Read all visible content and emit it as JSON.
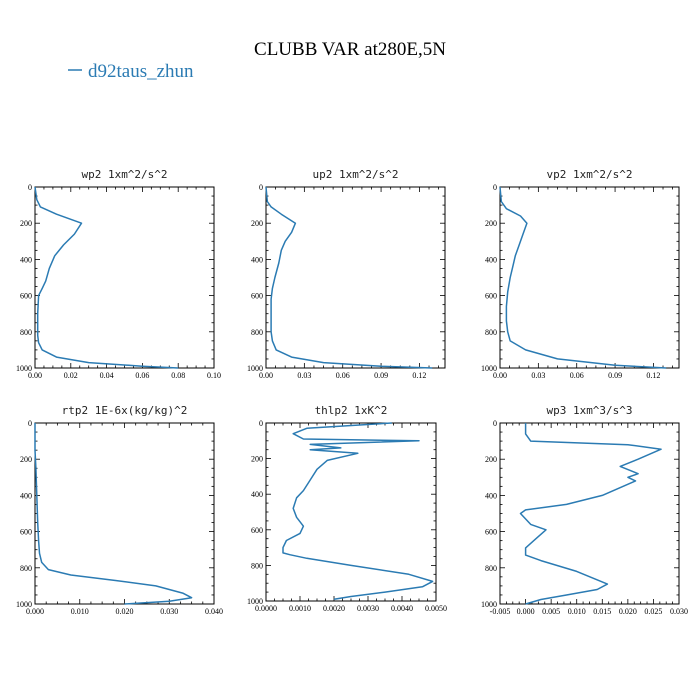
{
  "figure": {
    "title": "CLUBB VAR at280E,5N",
    "legend": {
      "label": "d92taus_zhun",
      "color": "#2b7bb3"
    }
  },
  "chart_data": [
    {
      "type": "line",
      "title": "wp2  1xm^2/s^2",
      "xlim": [
        0,
        0.1
      ],
      "xticks": [
        0,
        0.02,
        0.04,
        0.06,
        0.08,
        0.1
      ],
      "xtick_labels": [
        "0.00",
        "0.02",
        "0.04",
        "0.06",
        "0.08",
        "0.10"
      ],
      "ylim": [
        1000,
        0
      ],
      "yticks": [
        0,
        200,
        400,
        600,
        800,
        1000
      ],
      "ytick_labels": [
        "0",
        "200",
        "400",
        "600",
        "800",
        "1000"
      ],
      "series": [
        {
          "color": "#2b7bb3",
          "x": [
            0.0,
            0.001,
            0.003,
            0.012,
            0.026,
            0.022,
            0.016,
            0.011,
            0.008,
            0.006,
            0.004,
            0.002,
            0.0015,
            0.0015,
            0.0015,
            0.002,
            0.004,
            0.012,
            0.03,
            0.06,
            0.08
          ],
          "y": [
            0,
            70,
            110,
            150,
            200,
            260,
            320,
            380,
            450,
            520,
            560,
            600,
            700,
            780,
            820,
            860,
            900,
            940,
            970,
            990,
            1000
          ]
        }
      ]
    },
    {
      "type": "line",
      "title": "up2  1xm^2/s^2",
      "xlim": [
        0,
        0.14
      ],
      "xticks": [
        0,
        0.03,
        0.06,
        0.09,
        0.12
      ],
      "xtick_labels": [
        "0.00",
        "0.03",
        "0.06",
        "0.09",
        "0.12"
      ],
      "ylim": [
        1000,
        0
      ],
      "yticks": [
        0,
        200,
        400,
        600,
        800,
        1000
      ],
      "ytick_labels": [
        "0",
        "200",
        "400",
        "600",
        "800",
        "1000"
      ],
      "series": [
        {
          "color": "#2b7bb3",
          "x": [
            0.0,
            0.001,
            0.004,
            0.012,
            0.023,
            0.02,
            0.015,
            0.012,
            0.01,
            0.007,
            0.005,
            0.004,
            0.004,
            0.004,
            0.005,
            0.008,
            0.02,
            0.045,
            0.09,
            0.13
          ],
          "y": [
            0,
            80,
            110,
            150,
            200,
            250,
            300,
            350,
            420,
            500,
            560,
            620,
            700,
            800,
            850,
            900,
            940,
            970,
            990,
            1000
          ]
        }
      ]
    },
    {
      "type": "line",
      "title": "vp2  1xm^2/s^2",
      "xlim": [
        0,
        0.14
      ],
      "xticks": [
        0,
        0.03,
        0.06,
        0.09,
        0.12
      ],
      "xtick_labels": [
        "0.00",
        "0.03",
        "0.06",
        "0.09",
        "0.12"
      ],
      "ylim": [
        1000,
        0
      ],
      "yticks": [
        0,
        200,
        400,
        600,
        800,
        1000
      ],
      "ytick_labels": [
        "0",
        "200",
        "400",
        "600",
        "800",
        "1000"
      ],
      "series": [
        {
          "color": "#2b7bb3",
          "x": [
            0.0,
            0.001,
            0.005,
            0.016,
            0.021,
            0.018,
            0.015,
            0.012,
            0.01,
            0.008,
            0.006,
            0.005,
            0.005,
            0.006,
            0.008,
            0.02,
            0.045,
            0.09,
            0.13
          ],
          "y": [
            0,
            80,
            120,
            160,
            200,
            260,
            320,
            380,
            440,
            500,
            580,
            660,
            740,
            800,
            850,
            900,
            950,
            985,
            1000
          ]
        }
      ]
    },
    {
      "type": "line",
      "title": "rtp2  1E-6x(kg/kg)^2",
      "xlim": [
        0,
        0.04
      ],
      "xticks": [
        0,
        0.01,
        0.02,
        0.03,
        0.04
      ],
      "xtick_labels": [
        "0.000",
        "0.010",
        "0.020",
        "0.030",
        "0.040"
      ],
      "ylim": [
        1000,
        0
      ],
      "yticks": [
        0,
        200,
        400,
        600,
        800,
        1000
      ],
      "ytick_labels": [
        "0",
        "200",
        "400",
        "600",
        "800",
        "1000"
      ],
      "series": [
        {
          "color": "#2b7bb3",
          "x": [
            0.0,
            0.0,
            0.0002,
            0.0004,
            0.0006,
            0.0008,
            0.001,
            0.0015,
            0.003,
            0.008,
            0.018,
            0.027,
            0.033,
            0.035,
            0.03,
            0.02
          ],
          "y": [
            0,
            150,
            250,
            400,
            550,
            650,
            720,
            770,
            810,
            840,
            870,
            900,
            940,
            965,
            985,
            1000
          ]
        }
      ]
    },
    {
      "type": "line",
      "title": "thlp2  1xK^2",
      "xlim": [
        0,
        0.005
      ],
      "xticks": [
        0,
        0.001,
        0.002,
        0.003,
        0.004,
        0.005
      ],
      "xtick_labels": [
        "0.0000",
        "0.0010",
        "0.0020",
        "0.0030",
        "0.0040",
        "0.0050"
      ],
      "ylim": [
        1000,
        0
      ],
      "yticks": [
        0,
        200,
        400,
        600,
        800,
        1000
      ],
      "ytick_labels": [
        "0",
        "200",
        "400",
        "600",
        "800",
        "1000"
      ],
      "series": [
        {
          "color": "#2b7bb3",
          "x": [
            0.0037,
            0.0012,
            0.0008,
            0.0011,
            0.0045,
            0.0013,
            0.0022,
            0.0013,
            0.0027,
            0.0018,
            0.0015,
            0.0013,
            0.0011,
            0.0009,
            0.0008,
            0.0009,
            0.0011,
            0.001,
            0.0006,
            0.0005,
            0.0005,
            0.0007,
            0.0012,
            0.0025,
            0.0042,
            0.0049,
            0.0046,
            0.0035,
            0.0025,
            0.002
          ],
          "y": [
            0,
            30,
            60,
            90,
            100,
            120,
            140,
            150,
            170,
            210,
            260,
            320,
            380,
            420,
            480,
            530,
            580,
            620,
            660,
            700,
            730,
            740,
            760,
            800,
            850,
            890,
            920,
            950,
            975,
            990
          ]
        }
      ]
    },
    {
      "type": "line",
      "title": "wp3  1xm^3/s^3",
      "xlim": [
        -0.005,
        0.03
      ],
      "xticks": [
        -0.005,
        0.0,
        0.005,
        0.01,
        0.015,
        0.02,
        0.025,
        0.03
      ],
      "xtick_labels": [
        "-0.005",
        "0.000",
        "0.005",
        "0.010",
        "0.015",
        "0.020",
        "0.025",
        "0.030"
      ],
      "ylim": [
        1000,
        0
      ],
      "yticks": [
        0,
        200,
        400,
        600,
        800,
        1000
      ],
      "ytick_labels": [
        "0",
        "200",
        "400",
        "600",
        "800",
        "1000"
      ],
      "series": [
        {
          "color": "#2b7bb3",
          "x": [
            0.0,
            0.0,
            0.001,
            0.02,
            0.0265,
            0.022,
            0.0185,
            0.022,
            0.02,
            0.0215,
            0.015,
            0.008,
            0.0,
            -0.001,
            0.001,
            0.004,
            0.002,
            0.0,
            0.0,
            0.003,
            0.01,
            0.016,
            0.014,
            0.008,
            0.003,
            0.0
          ],
          "y": [
            0,
            60,
            100,
            120,
            145,
            200,
            240,
            280,
            300,
            320,
            400,
            450,
            480,
            500,
            560,
            590,
            640,
            690,
            730,
            760,
            820,
            890,
            920,
            950,
            975,
            1000
          ]
        }
      ]
    }
  ]
}
